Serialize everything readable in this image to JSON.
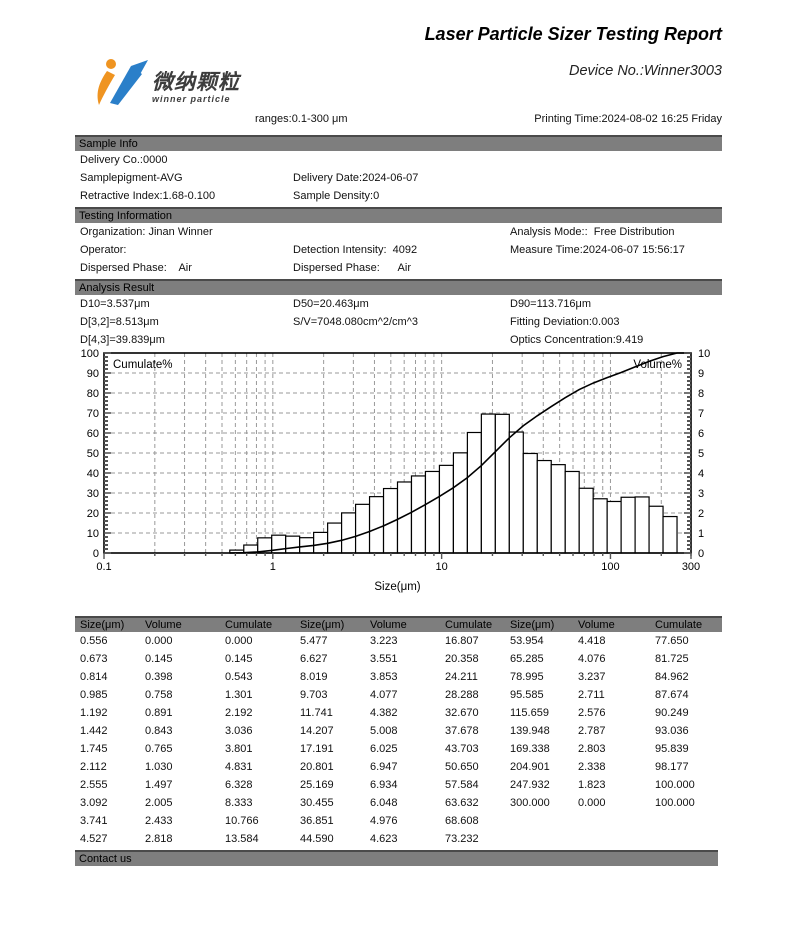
{
  "header": {
    "title": "Laser Particle Sizer Testing Report",
    "device_no": "Device No.:Winner3003",
    "logo_cn": "微纳颗粒",
    "logo_en": "winner particle",
    "ranges": "ranges:0.1-300 μm",
    "printing_time": "Printing Time:2024-08-02 16:25 Friday"
  },
  "colors": {
    "section_bar": "#7e7e7e",
    "logo_orange": "#ef9421",
    "logo_blue": "#2a7fc9",
    "text": "#111111"
  },
  "sections": [
    {
      "title": "Sample Info",
      "rows": [
        [
          "Delivery Co.:0000",
          "",
          ""
        ],
        [
          "Samplepigment-AVG",
          "Delivery Date:2024-06-07",
          ""
        ],
        [
          "Retractive Index:1.68-0.100",
          "Sample Density:0",
          ""
        ]
      ]
    },
    {
      "title": "Testing Information",
      "rows": [
        [
          "Organization: Jinan Winner",
          "",
          "Analysis Mode::  Free Distribution"
        ],
        [
          "Operator:",
          "Detection Intensity:  4092",
          "Measure Time:2024-06-07 15:56:17"
        ],
        [
          "Dispersed Phase:    Air",
          "Dispersed Phase:      Air",
          ""
        ]
      ]
    },
    {
      "title": "Analysis Result",
      "rows": [
        [
          "D10=3.537μm",
          "D50=20.463μm",
          "D90=113.716μm"
        ],
        [
          "D[3,2]=8.513μm",
          "S/V=7048.080cm^2/cm^3",
          "Fitting Deviation:0.003"
        ],
        [
          "D[4,3]=39.839μm",
          "",
          "Optics Concentration:9.419"
        ]
      ]
    }
  ],
  "chart_data": {
    "type": "bar",
    "title": "",
    "xlabel": "Size(μm)",
    "x_scale": "log",
    "x_range": [
      0.1,
      300
    ],
    "x_tick_labels": [
      "0.1",
      "1",
      "10",
      "100",
      "300"
    ],
    "left_axis": {
      "label": "Cumulate%",
      "min": 0,
      "max": 100,
      "step": 10
    },
    "right_axis": {
      "label": "Volume%",
      "min": 0,
      "max": 10,
      "step": 1
    },
    "grid": true,
    "sizes": [
      0.556,
      0.673,
      0.814,
      0.985,
      1.192,
      1.442,
      1.745,
      2.112,
      2.555,
      3.092,
      3.741,
      4.527,
      5.477,
      6.627,
      8.019,
      9.703,
      11.741,
      14.207,
      17.191,
      20.801,
      25.169,
      30.455,
      36.851,
      44.59,
      53.954,
      65.285,
      78.995,
      95.585,
      115.659,
      139.948,
      169.338,
      204.901,
      247.932,
      300.0
    ],
    "series": [
      {
        "name": "Volume%",
        "type": "bar",
        "axis": "right",
        "values": [
          0.0,
          0.145,
          0.398,
          0.758,
          0.891,
          0.843,
          0.765,
          1.03,
          1.497,
          2.005,
          2.433,
          2.818,
          3.223,
          3.551,
          3.853,
          4.077,
          4.382,
          5.008,
          6.025,
          6.947,
          6.934,
          6.048,
          4.976,
          4.623,
          4.418,
          4.076,
          3.237,
          2.711,
          2.576,
          2.787,
          2.803,
          2.338,
          1.823,
          0.0
        ]
      },
      {
        "name": "Cumulate%",
        "type": "line",
        "axis": "left",
        "values": [
          0.0,
          0.145,
          0.543,
          1.301,
          2.192,
          3.036,
          3.801,
          4.831,
          6.328,
          8.333,
          10.766,
          13.584,
          16.807,
          20.358,
          24.211,
          28.288,
          32.67,
          37.678,
          43.703,
          50.65,
          57.584,
          63.632,
          68.608,
          73.232,
          77.65,
          81.725,
          84.962,
          87.674,
          90.249,
          93.036,
          95.839,
          98.177,
          100.0,
          100.0
        ]
      }
    ]
  },
  "table": {
    "headers": [
      "Size(μm)",
      "Volume",
      "Cumulate",
      "Size(μm)",
      "Volume",
      "Cumulate",
      "Size(μm)",
      "Volume",
      "Cumulate"
    ],
    "rows": [
      [
        "0.556",
        "0.000",
        "0.000",
        "5.477",
        "3.223",
        "16.807",
        "53.954",
        "4.418",
        "77.650"
      ],
      [
        "0.673",
        "0.145",
        "0.145",
        "6.627",
        "3.551",
        "20.358",
        "65.285",
        "4.076",
        "81.725"
      ],
      [
        "0.814",
        "0.398",
        "0.543",
        "8.019",
        "3.853",
        "24.211",
        "78.995",
        "3.237",
        "84.962"
      ],
      [
        "0.985",
        "0.758",
        "1.301",
        "9.703",
        "4.077",
        "28.288",
        "95.585",
        "2.711",
        "87.674"
      ],
      [
        "1.192",
        "0.891",
        "2.192",
        "11.741",
        "4.382",
        "32.670",
        "115.659",
        "2.576",
        "90.249"
      ],
      [
        "1.442",
        "0.843",
        "3.036",
        "14.207",
        "5.008",
        "37.678",
        "139.948",
        "2.787",
        "93.036"
      ],
      [
        "1.745",
        "0.765",
        "3.801",
        "17.191",
        "6.025",
        "43.703",
        "169.338",
        "2.803",
        "95.839"
      ],
      [
        "2.112",
        "1.030",
        "4.831",
        "20.801",
        "6.947",
        "50.650",
        "204.901",
        "2.338",
        "98.177"
      ],
      [
        "2.555",
        "1.497",
        "6.328",
        "25.169",
        "6.934",
        "57.584",
        "247.932",
        "1.823",
        "100.000"
      ],
      [
        "3.092",
        "2.005",
        "8.333",
        "30.455",
        "6.048",
        "63.632",
        "300.000",
        "0.000",
        "100.000"
      ],
      [
        "3.741",
        "2.433",
        "10.766",
        "36.851",
        "4.976",
        "68.608",
        "",
        "",
        ""
      ],
      [
        "4.527",
        "2.818",
        "13.584",
        "44.590",
        "4.623",
        "73.232",
        "",
        "",
        ""
      ]
    ]
  },
  "contact": {
    "title": "Contact us"
  }
}
